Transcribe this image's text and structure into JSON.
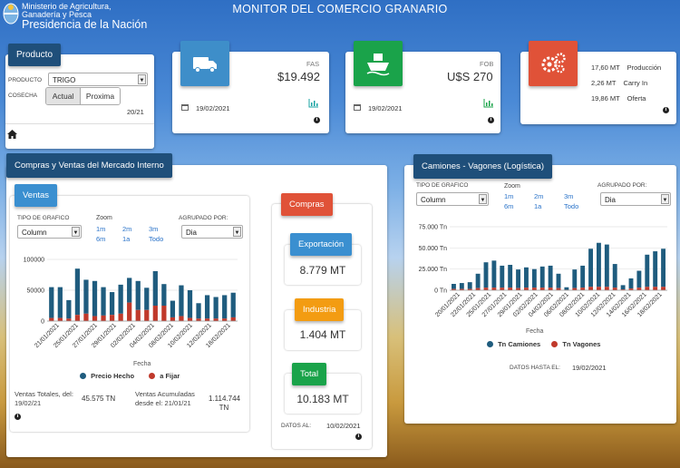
{
  "header": {
    "ministry_line1": "Ministerio de Agricultura,",
    "ministry_line2": "Ganadería y Pesca",
    "ministry_line3": "Presidencia de la Nación",
    "title": "MONITOR DEL COMERCIO GRANARIO"
  },
  "producto": {
    "tab": "Producto",
    "producto_label": "PRODUCTO",
    "producto_value": "TRIGO",
    "cosecha_label": "COSECHA",
    "btn_actual": "Actual",
    "btn_proxima": "Proxima",
    "campaign": "20/21"
  },
  "fas": {
    "label": "FAS",
    "value": "$19.492",
    "date": "19/02/2021"
  },
  "fob": {
    "label": "FOB",
    "value": "U$S 270",
    "date": "19/02/2021"
  },
  "stock": {
    "rows": [
      {
        "value": "17,60 MT",
        "label": "Producción"
      },
      {
        "value": "2,26 MT",
        "label": "Carry In"
      },
      {
        "value": "19,86 MT",
        "label": "Oferta"
      }
    ]
  },
  "mercado": {
    "title": "Compras y Ventas del Mercado Interno"
  },
  "ventas": {
    "tab": "Ventas",
    "tipo_label": "TIPO DE GRAFICO",
    "tipo_value": "Column",
    "zoom_label": "Zoom",
    "zoom_options": [
      "1m",
      "2m",
      "3m",
      "6m",
      "1a",
      "Todo"
    ],
    "agrupado_label": "AGRUPADO POR:",
    "agrupado_value": "Dia",
    "xlabel": "Fecha",
    "legend": [
      "Precio Hecho",
      "a Fijar"
    ],
    "totales_label": "Ventas Totales, del: 19/02/21",
    "totales_value": "45.575 TN",
    "acum_label": "Ventas Acumuladas desde el: 21/01/21",
    "acum_value": "1.114.744 TN"
  },
  "compras": {
    "tab": "Compras",
    "exportacion_label": "Exportación",
    "exportacion_value": "8.779 MT",
    "industria_label": "Industria",
    "industria_value": "1.404 MT",
    "total_label": "Total",
    "total_value": "10.183 MT",
    "datos_label": "DATOS AL:",
    "datos_value": "10/02/2021"
  },
  "camiones": {
    "title": "Camiones - Vagones (Logística)",
    "tipo_label": "TIPO DE GRAFICO",
    "tipo_value": "Column",
    "zoom_label": "Zoom",
    "zoom_options": [
      "1m",
      "2m",
      "3m",
      "6m",
      "1a",
      "Todo"
    ],
    "agrupado_label": "AGRUPADO POR:",
    "agrupado_value": "Dia",
    "xlabel": "Fecha",
    "legend": [
      "Tn Camiones",
      "Tn Vagones"
    ],
    "datos_label": "DATOS HASTA EL:",
    "datos_value": "19/02/2021"
  },
  "colors": {
    "navy": "#1f4f7a",
    "series_main": "#1f5c7e",
    "series_alt": "#c0392b",
    "green": "#1aa34a",
    "red": "#e05238",
    "orange": "#f39c12"
  },
  "chart_data": [
    {
      "type": "bar",
      "stacked": true,
      "title": "",
      "xlabel": "Fecha",
      "ylabel": "",
      "ylim": [
        0,
        100000
      ],
      "yticks": [
        0,
        50000,
        100000
      ],
      "x_tick_labels": [
        "21/01/2021",
        "25/01/2021",
        "27/01/2021",
        "29/01/2021",
        "02/02/2021",
        "04/02/2021",
        "08/02/2021",
        "10/02/2021",
        "12/02/2021",
        "18/02/2021"
      ],
      "series": [
        {
          "name": "Precio Hecho",
          "values": [
            50000,
            50000,
            30000,
            75000,
            55000,
            57000,
            46000,
            37000,
            47000,
            40000,
            47000,
            36000,
            56000,
            35000,
            27000,
            50000,
            45000,
            25000,
            38000,
            35000,
            38000,
            40000
          ]
        },
        {
          "name": "a Fijar",
          "values": [
            5000,
            5000,
            4000,
            10000,
            12000,
            8000,
            9000,
            10000,
            12000,
            30000,
            18000,
            18000,
            25000,
            25000,
            6000,
            8000,
            5000,
            4000,
            4000,
            4000,
            4000,
            6000
          ]
        }
      ]
    },
    {
      "type": "bar",
      "stacked": true,
      "title": "",
      "xlabel": "Fecha",
      "ylabel": "",
      "ylim": [
        0,
        75000
      ],
      "yticks": [
        "0 Tn",
        "25.000 Tn",
        "50.000 Tn",
        "75.000 Tn"
      ],
      "x_tick_labels": [
        "20/01/2021",
        "22/01/2021",
        "25/01/2021",
        "27/01/2021",
        "29/01/2021",
        "02/02/2021",
        "04/02/2021",
        "06/02/2021",
        "08/02/2021",
        "10/02/2021",
        "12/02/2021",
        "14/02/2021",
        "16/02/2021",
        "18/02/2021"
      ],
      "series": [
        {
          "name": "Tn Camiones",
          "values": [
            6000,
            7000,
            8000,
            17000,
            30000,
            32000,
            26000,
            27000,
            22000,
            24000,
            22000,
            25000,
            26000,
            17000,
            3000,
            22000,
            26000,
            45000,
            52000,
            50000,
            28000,
            5000,
            12000,
            20000,
            38000,
            42000,
            45000
          ]
        },
        {
          "name": "Tn Vagones",
          "values": [
            1500,
            1500,
            1500,
            2500,
            3000,
            3000,
            3000,
            3000,
            2500,
            3000,
            3000,
            3000,
            3000,
            2500,
            500,
            2500,
            3000,
            4000,
            4000,
            4000,
            3000,
            1000,
            2000,
            3000,
            4000,
            4000,
            4000
          ]
        }
      ]
    }
  ]
}
